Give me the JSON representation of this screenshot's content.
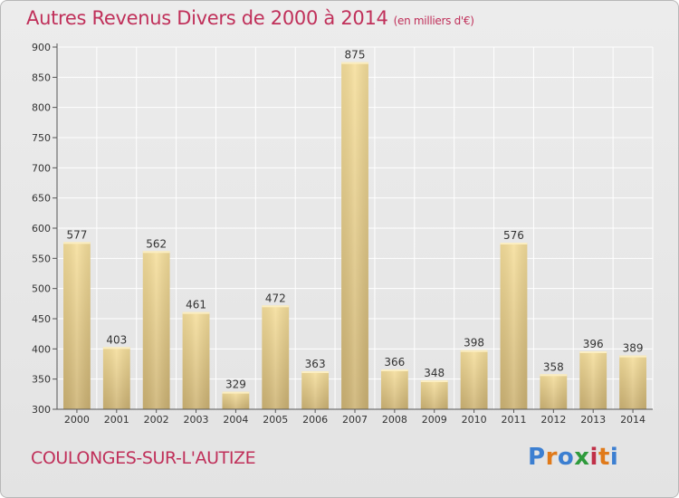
{
  "title": "Autres Revenus Divers de 2000 à 2014",
  "unit_note": "(en milliers d'€)",
  "commune": "COULONGES-SUR-L'AUTIZE",
  "logo": {
    "text": "Proxiti",
    "colors": [
      "#3c7fd1",
      "#e07a1a",
      "#3c7fd1",
      "#2e9a3c",
      "#c03048",
      "#e07a1a",
      "#3c7fd1"
    ]
  },
  "colors": {
    "title": "#c0305a",
    "bar_light": "#f6df9c",
    "bar_dark": "#cdb374",
    "grid": "#ffffff",
    "axis_text": "#333333"
  },
  "chart_data": {
    "type": "bar",
    "categories": [
      "2000",
      "2001",
      "2002",
      "2003",
      "2004",
      "2005",
      "2006",
      "2007",
      "2008",
      "2009",
      "2010",
      "2011",
      "2012",
      "2013",
      "2014"
    ],
    "values": [
      577,
      403,
      562,
      461,
      329,
      472,
      363,
      875,
      366,
      348,
      398,
      576,
      358,
      396,
      389
    ],
    "ylim": [
      300,
      900
    ],
    "yticks": [
      300,
      350,
      400,
      450,
      500,
      550,
      600,
      650,
      700,
      750,
      800,
      850,
      900
    ],
    "grid": true,
    "title": "Autres Revenus Divers de 2000 à 2014",
    "xlabel": "",
    "ylabel": ""
  }
}
